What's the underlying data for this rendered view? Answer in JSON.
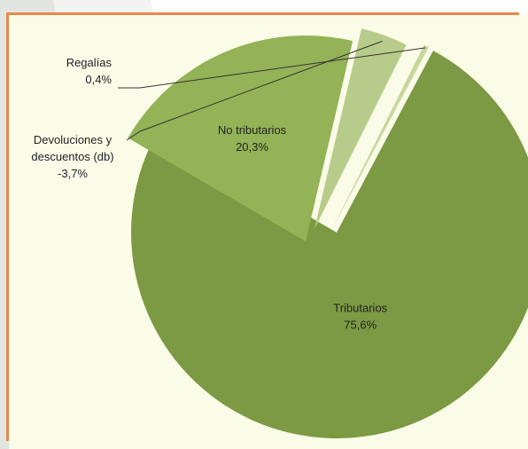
{
  "chart_data": {
    "type": "pie",
    "title": "",
    "slices": [
      {
        "name": "Tributarios",
        "pct_label": "75,6%",
        "value": 75.6,
        "color": "#7b9a43"
      },
      {
        "name": "No tributarios",
        "pct_label": "20,3%",
        "value": 20.3,
        "color": "#93b356"
      },
      {
        "name": "Devoluciones y descuentos (db)",
        "name_lines": [
          "Devoluciones y",
          "descuentos (db)"
        ],
        "pct_label": "-3,7%",
        "value": 3.7,
        "color": "#b7cc8a"
      },
      {
        "name": "Regalías",
        "pct_label": "0,4%",
        "value": 0.4,
        "color": "#c7d79d"
      }
    ],
    "exploded": true,
    "legend": "none"
  },
  "colors": {
    "frame_border": "#e8874a",
    "plot_background": "#fbfce8",
    "band_dark": "#c9d3c6",
    "band_light": "#e6ebe3"
  }
}
